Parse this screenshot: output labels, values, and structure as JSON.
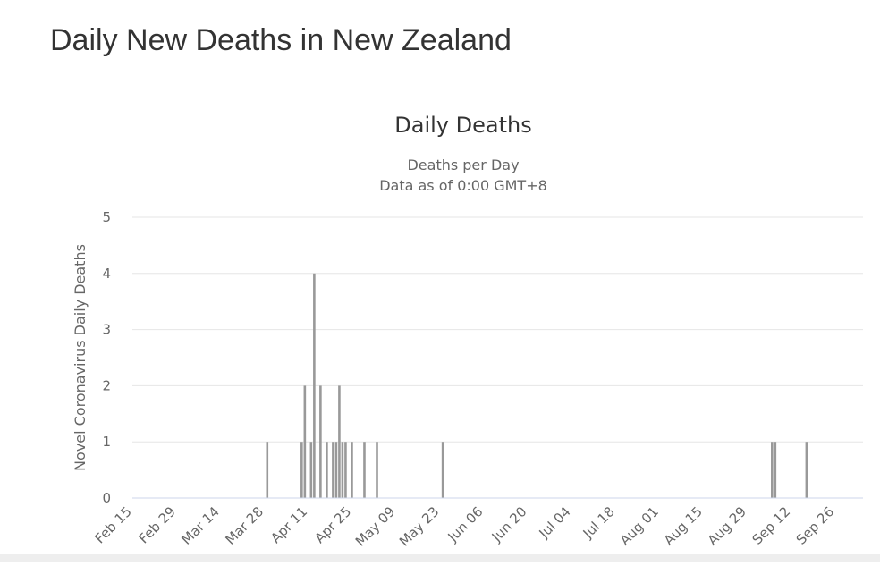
{
  "page": {
    "title": "Daily New Deaths in New Zealand"
  },
  "colors": {
    "bar": "#999999",
    "grid": "#e6e6e6",
    "axis_line": "#ccd6eb",
    "text": "#666666",
    "title": "#333333"
  },
  "chart_data": {
    "type": "bar",
    "title": "Daily Deaths",
    "subtitle_lines": [
      "Deaths per Day",
      "Data as of 0:00 GMT+8"
    ],
    "xlabel": "",
    "ylabel": "Novel Coronavirus Daily Deaths",
    "ylim": [
      0,
      5
    ],
    "yticks": [
      0,
      1,
      2,
      3,
      4,
      5
    ],
    "x_start": "Feb 15",
    "x_end": "Oct 05",
    "xticks": [
      "Feb 15",
      "Feb 29",
      "Mar 14",
      "Mar 28",
      "Apr 11",
      "Apr 25",
      "May 09",
      "May 23",
      "Jun 06",
      "Jun 20",
      "Jul 04",
      "Jul 18",
      "Aug 01",
      "Aug 15",
      "Aug 29",
      "Sep 12",
      "Sep 26"
    ],
    "grid": true,
    "legend": "none",
    "series": [
      {
        "points": [
          {
            "date": "Mar 29",
            "value": 1
          },
          {
            "date": "Apr 09",
            "value": 1
          },
          {
            "date": "Apr 10",
            "value": 2
          },
          {
            "date": "Apr 12",
            "value": 1
          },
          {
            "date": "Apr 13",
            "value": 4
          },
          {
            "date": "Apr 15",
            "value": 2
          },
          {
            "date": "Apr 17",
            "value": 1
          },
          {
            "date": "Apr 19",
            "value": 1
          },
          {
            "date": "Apr 20",
            "value": 1
          },
          {
            "date": "Apr 21",
            "value": 2
          },
          {
            "date": "Apr 22",
            "value": 1
          },
          {
            "date": "Apr 23",
            "value": 1
          },
          {
            "date": "Apr 25",
            "value": 1
          },
          {
            "date": "Apr 29",
            "value": 1
          },
          {
            "date": "May 03",
            "value": 1
          },
          {
            "date": "May 24",
            "value": 1
          },
          {
            "date": "Sep 06",
            "value": 1
          },
          {
            "date": "Sep 07",
            "value": 1
          },
          {
            "date": "Sep 17",
            "value": 1
          }
        ]
      }
    ]
  }
}
